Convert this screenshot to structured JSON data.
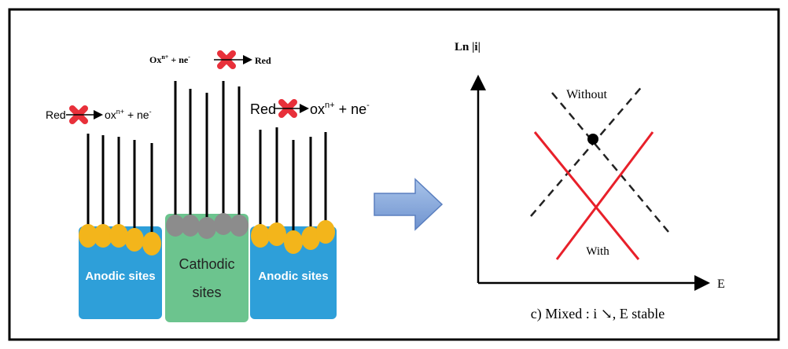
{
  "left_panel": {
    "left_reaction": {
      "reactant": "Red",
      "product": "ox",
      "product_charge": "n+",
      "electrons": " + ne",
      "electron_charge": "-"
    },
    "top_reaction": {
      "reactant": "Ox",
      "reactant_charge": "n+",
      "electrons": " + ne",
      "electron_charge": "-",
      "product": "Red"
    },
    "right_reaction": {
      "reactant": "Red",
      "product": "ox",
      "product_charge": "n+",
      "electrons": " + ne",
      "electron_charge": "-"
    },
    "anodic_left": "Anodic sites",
    "cathodic": {
      "line1": "Cathodic",
      "line2": "sites"
    },
    "anodic_right": "Anodic sites"
  },
  "right_panel": {
    "y_axis_label": "Ln |i|",
    "x_axis_label": "E",
    "without_label": "Without",
    "with_label": "With",
    "caption": "c) Mixed : i ↘, E stable"
  }
}
